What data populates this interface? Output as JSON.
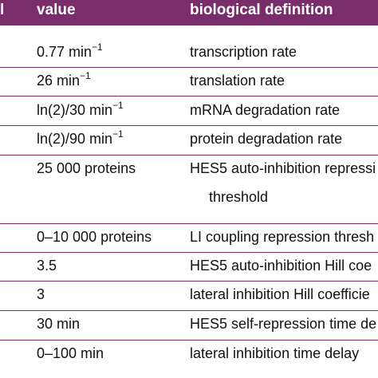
{
  "header": {
    "col0": "l",
    "col1": "value",
    "col2": "biological definition"
  },
  "rows": [
    {
      "value": "0.77 min",
      "sup": "−1",
      "definition": "transcription rate"
    },
    {
      "value": "26 min",
      "sup": "−1",
      "definition": "translation rate"
    },
    {
      "value": "ln(2)/30 min",
      "sup": "−1",
      "definition": "mRNA degradation rate"
    },
    {
      "value": "ln(2)/90 min",
      "sup": "−1",
      "definition": "protein degradation rate"
    },
    {
      "value": "25 000 proteins",
      "sup": "",
      "definition": "HES5 auto-inhibition repressi",
      "definition2": "threshold"
    },
    {
      "value": "0–10 000 proteins",
      "sup": "",
      "definition": "LI coupling repression thresh"
    },
    {
      "value": "3.5",
      "sup": "",
      "definition": "HES5 auto-inhibition Hill coe"
    },
    {
      "value": "3",
      "sup": "",
      "definition": "lateral inhibition Hill coefficie"
    },
    {
      "value": "30 min",
      "sup": "",
      "definition": "HES5 self-repression time de"
    },
    {
      "value": "0–100 min",
      "sup": "",
      "definition": "lateral inhibition time delay"
    }
  ],
  "colors": {
    "header_bg": "#7a2d6b",
    "rule": "#7a2d6b",
    "header_text": "#ffffff"
  }
}
